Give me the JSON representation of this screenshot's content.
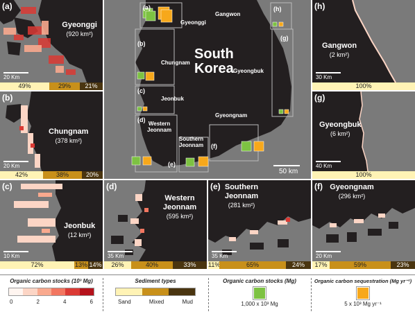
{
  "panels": {
    "a": {
      "label": "(a)",
      "name": "Gyeonggi",
      "area": "(920 km²)",
      "scale": "20 Km",
      "sediment": {
        "sand": "49%",
        "mixed": "29%",
        "mud": "21%",
        "sand_frac": 0.49,
        "mixed_frac": 0.29,
        "mud_frac": 0.21
      }
    },
    "b": {
      "label": "(b)",
      "name": "Chungnam",
      "area": "(378 km²)",
      "scale": "20 Km",
      "sediment": {
        "sand": "42%",
        "mixed": "38%",
        "mud": "20%",
        "sand_frac": 0.42,
        "mixed_frac": 0.38,
        "mud_frac": 0.2
      }
    },
    "c": {
      "label": "(c)",
      "name": "Jeonbuk",
      "area": "(12 km²)",
      "scale": "10 Km",
      "sediment": {
        "sand": "72%",
        "mixed": "13%",
        "mud": "14%",
        "sand_frac": 0.72,
        "mixed_frac": 0.13,
        "mud_frac": 0.14
      }
    },
    "d": {
      "label": "(d)",
      "name": "Western Jeonnam",
      "area": "(595 km²)",
      "scale": "35 Km",
      "sediment": {
        "sand": "26%",
        "mixed": "40%",
        "mud": "33%",
        "sand_frac": 0.26,
        "mixed_frac": 0.4,
        "mud_frac": 0.33
      }
    },
    "e": {
      "label": "(e)",
      "name": "Southern Jeonnam",
      "area": "(281 km²)",
      "scale": "35 Km",
      "sediment": {
        "sand": "11%",
        "mixed": "65%",
        "mud": "24%",
        "sand_frac": 0.11,
        "mixed_frac": 0.65,
        "mud_frac": 0.24
      }
    },
    "f": {
      "label": "(f)",
      "name": "Gyeongnam",
      "area": "(296 km²)",
      "scale": "20 Km",
      "sediment": {
        "sand": "17%",
        "mixed": "59%",
        "mud": "23%",
        "sand_frac": 0.17,
        "mixed_frac": 0.59,
        "mud_frac": 0.23
      }
    },
    "g": {
      "label": "(g)",
      "name": "Gyeongbuk",
      "area": "(6 km²)",
      "scale": "40 Km",
      "sediment": {
        "sand": "100%",
        "sand_frac": 1.0
      }
    },
    "h": {
      "label": "(h)",
      "name": "Gangwon",
      "area": "(2 km²)",
      "scale": "30 Km",
      "sediment": {
        "sand": "100%",
        "sand_frac": 1.0
      }
    }
  },
  "main_map": {
    "country_line1": "South",
    "country_line2": "Korea",
    "scale": "50 km",
    "regions": {
      "gangwon": "Gangwon",
      "gyeonggi": "Gyeonggi",
      "chungnam": "Chungnam",
      "gyeongbuk": "Gyeongbuk",
      "jeonbuk": "Jeonbuk",
      "gyeongnam": "Gyeongnam",
      "western_jeonnam_1": "Western",
      "western_jeonnam_2": "Jeonnam",
      "southern_jeonnam_1": "Southern",
      "southern_jeonnam_2": "Jeonnam"
    },
    "box_labels": [
      "(a)",
      "(b)",
      "(c)",
      "(d)",
      "(e)",
      "(f)",
      "(g)",
      "(h)"
    ]
  },
  "legend": {
    "stocks_title": "Organic carbon stocks (10³ Mg)",
    "stocks_ticks": [
      "0",
      "2",
      "4",
      "6"
    ],
    "stocks_colors": [
      "#fff5f0",
      "#fcd5c5",
      "#f9a98e",
      "#f27660",
      "#db3a34",
      "#b5121b"
    ],
    "sediment_title": "Sediment types",
    "sediment_labels": [
      "Sand",
      "Mixed",
      "Mud"
    ],
    "square_stocks_title": "Organic carbon stocks (Mg)",
    "square_stocks_value": "1,000 x 10³ Mg",
    "sequestration_title": "Organic carbon sequestration (Mg yr⁻¹)",
    "sequestration_value": "5 x 10³ Mg yr⁻¹"
  },
  "colors": {
    "land": "#231f20",
    "sea": "#7a7a7a",
    "stock_square": "#7dc242",
    "sequestration_square": "#f7a81b"
  }
}
